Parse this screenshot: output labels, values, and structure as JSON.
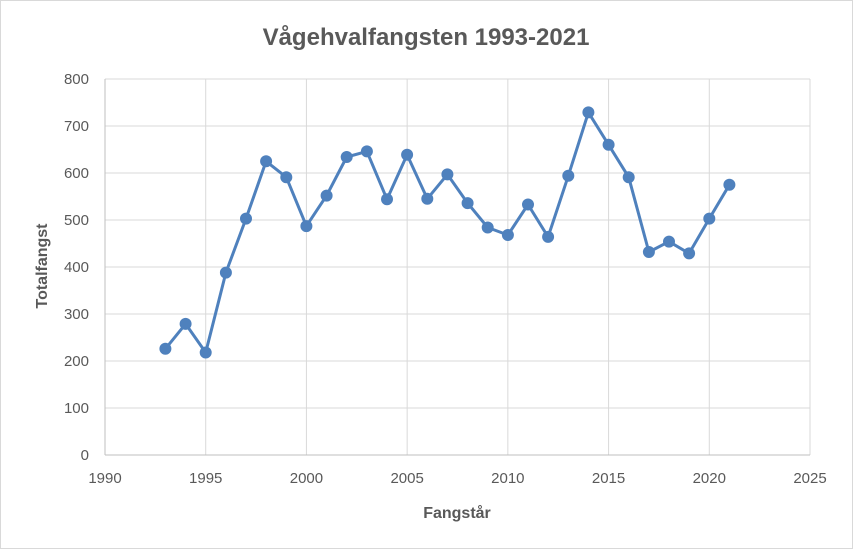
{
  "chart_data": {
    "type": "line",
    "title": "Vågehvalfangsten 1993-2021",
    "xlabel": "Fangstår",
    "ylabel": "Totalfangst",
    "xlim": [
      1990,
      2025
    ],
    "ylim": [
      0,
      800
    ],
    "x_ticks": [
      1990,
      1995,
      2000,
      2005,
      2010,
      2015,
      2020,
      2025
    ],
    "y_ticks": [
      0,
      100,
      200,
      300,
      400,
      500,
      600,
      700,
      800
    ],
    "grid": true,
    "legend": "none",
    "series": [
      {
        "color": "#4f81bd",
        "x": [
          1993,
          1994,
          1995,
          1996,
          1997,
          1998,
          1999,
          2000,
          2001,
          2002,
          2003,
          2004,
          2005,
          2006,
          2007,
          2008,
          2009,
          2010,
          2011,
          2012,
          2013,
          2014,
          2015,
          2016,
          2017,
          2018,
          2019,
          2020,
          2021
        ],
        "y": [
          226,
          279,
          218,
          388,
          503,
          625,
          591,
          487,
          552,
          634,
          646,
          544,
          639,
          545,
          597,
          536,
          484,
          468,
          533,
          464,
          594,
          729,
          660,
          591,
          432,
          454,
          429,
          503,
          575
        ]
      }
    ]
  }
}
